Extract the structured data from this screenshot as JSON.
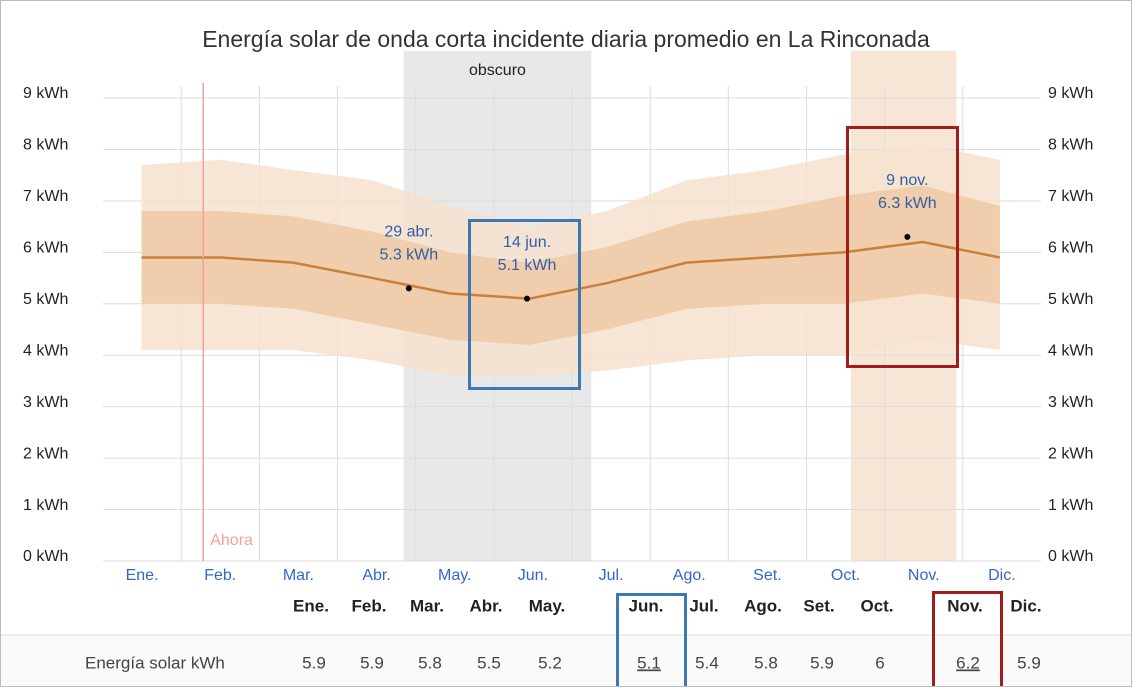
{
  "chart_data": {
    "type": "band-line",
    "title": "Energía solar de onda corta incidente diaria promedio en La Rinconada",
    "categories": [
      "Ene.",
      "Feb.",
      "Mar.",
      "Abr.",
      "May.",
      "Jun.",
      "Jul.",
      "Ago.",
      "Set.",
      "Oct.",
      "Nov.",
      "Dic."
    ],
    "x": [
      15,
      46,
      74,
      105,
      135,
      166,
      196,
      227,
      258,
      288,
      319,
      349
    ],
    "xlim": [
      0,
      365
    ],
    "ylim": [
      0,
      9
    ],
    "yticks": [
      {
        "value": 0,
        "label": "0 kWh"
      },
      {
        "value": 1,
        "label": "1 kWh"
      },
      {
        "value": 2,
        "label": "2 kWh"
      },
      {
        "value": 3,
        "label": "3 kWh"
      },
      {
        "value": 4,
        "label": "4 kWh"
      },
      {
        "value": 5,
        "label": "5 kWh"
      },
      {
        "value": 6,
        "label": "6 kWh"
      },
      {
        "value": 7,
        "label": "7 kWh"
      },
      {
        "value": 8,
        "label": "8 kWh"
      },
      {
        "value": 9,
        "label": "9 kWh"
      }
    ],
    "grid": true,
    "bands": [
      {
        "color": "#f6e2cf",
        "high": [
          7.7,
          7.8,
          7.6,
          7.4,
          6.9,
          6.5,
          6.8,
          7.4,
          7.6,
          7.9,
          8.1,
          7.8
        ],
        "low": [
          4.1,
          4.1,
          4.1,
          3.9,
          3.6,
          3.6,
          3.7,
          3.9,
          4.0,
          4.0,
          4.3,
          4.1
        ]
      },
      {
        "color": "#eec9a6",
        "high": [
          6.8,
          6.8,
          6.7,
          6.4,
          6.0,
          5.8,
          6.1,
          6.6,
          6.8,
          7.1,
          7.3,
          6.9
        ],
        "low": [
          5.0,
          5.0,
          4.9,
          4.6,
          4.3,
          4.2,
          4.5,
          4.9,
          5.0,
          5.0,
          5.2,
          5.0
        ]
      }
    ],
    "series": [
      {
        "color": "#c8803d",
        "values": [
          5.9,
          5.9,
          5.8,
          5.5,
          5.2,
          5.1,
          5.4,
          5.8,
          5.9,
          6.0,
          6.2,
          5.9
        ]
      }
    ],
    "dark_period": {
      "label": "obscuro",
      "x": [
        117,
        190
      ],
      "color": "#e8e8e8"
    },
    "bright_period": {
      "x": [
        291,
        332
      ],
      "color": "#f7e6d6"
    },
    "now": {
      "label": "Ahora",
      "x": 39,
      "color": "#f4a0a0"
    },
    "highlights": [
      {
        "date": "29 abr.",
        "x": 119,
        "value": 5.3,
        "value_label": "5.3 kWh"
      },
      {
        "date": "14 jun.",
        "x": 165,
        "value": 5.1,
        "value_label": "5.1 kWh"
      },
      {
        "date": "9 nov.",
        "x": 313,
        "value": 6.3,
        "value_label": "6.3 kWh"
      }
    ]
  },
  "table": {
    "header": [
      "Ene.",
      "Feb.",
      "Mar.",
      "Abr.",
      "May.",
      "Jun.",
      "Jul.",
      "Ago.",
      "Set.",
      "Oct.",
      "Nov.",
      "Dic."
    ],
    "row_label": "Energía solar kWh",
    "values": [
      5.9,
      5.9,
      5.8,
      5.5,
      5.2,
      5.1,
      5.4,
      5.8,
      5.9,
      6.0,
      6.2,
      5.9
    ]
  }
}
